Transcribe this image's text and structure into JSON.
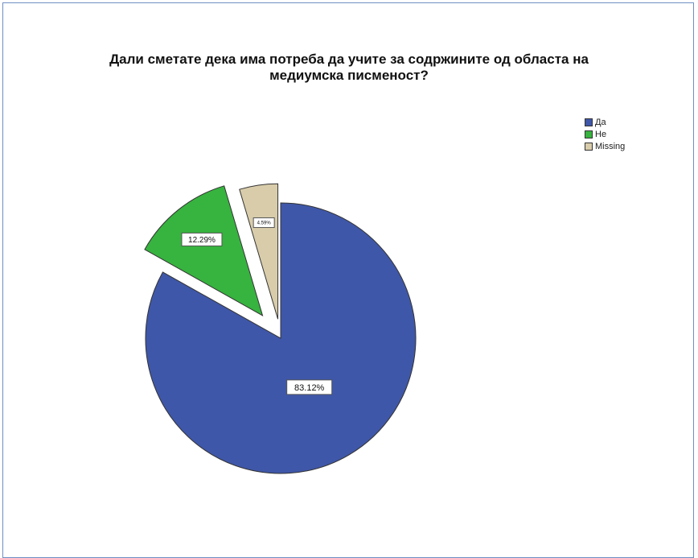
{
  "chart_data": {
    "type": "pie",
    "title": "Дали сметате дека има потреба да учите за содржините од областа на\nмедиумска писменост?",
    "categories": [
      "Да",
      "Не",
      "Missing"
    ],
    "values": [
      83.12,
      12.29,
      4.59
    ],
    "labels": [
      "83.12%",
      "12.29%",
      "4.59%"
    ],
    "colors": [
      "#3f57a8",
      "#37b33f",
      "#d8ccaa"
    ],
    "exploded": [
      false,
      true,
      true
    ],
    "start_angle": "12 o'clock, clockwise",
    "legend_position": "top-right"
  }
}
